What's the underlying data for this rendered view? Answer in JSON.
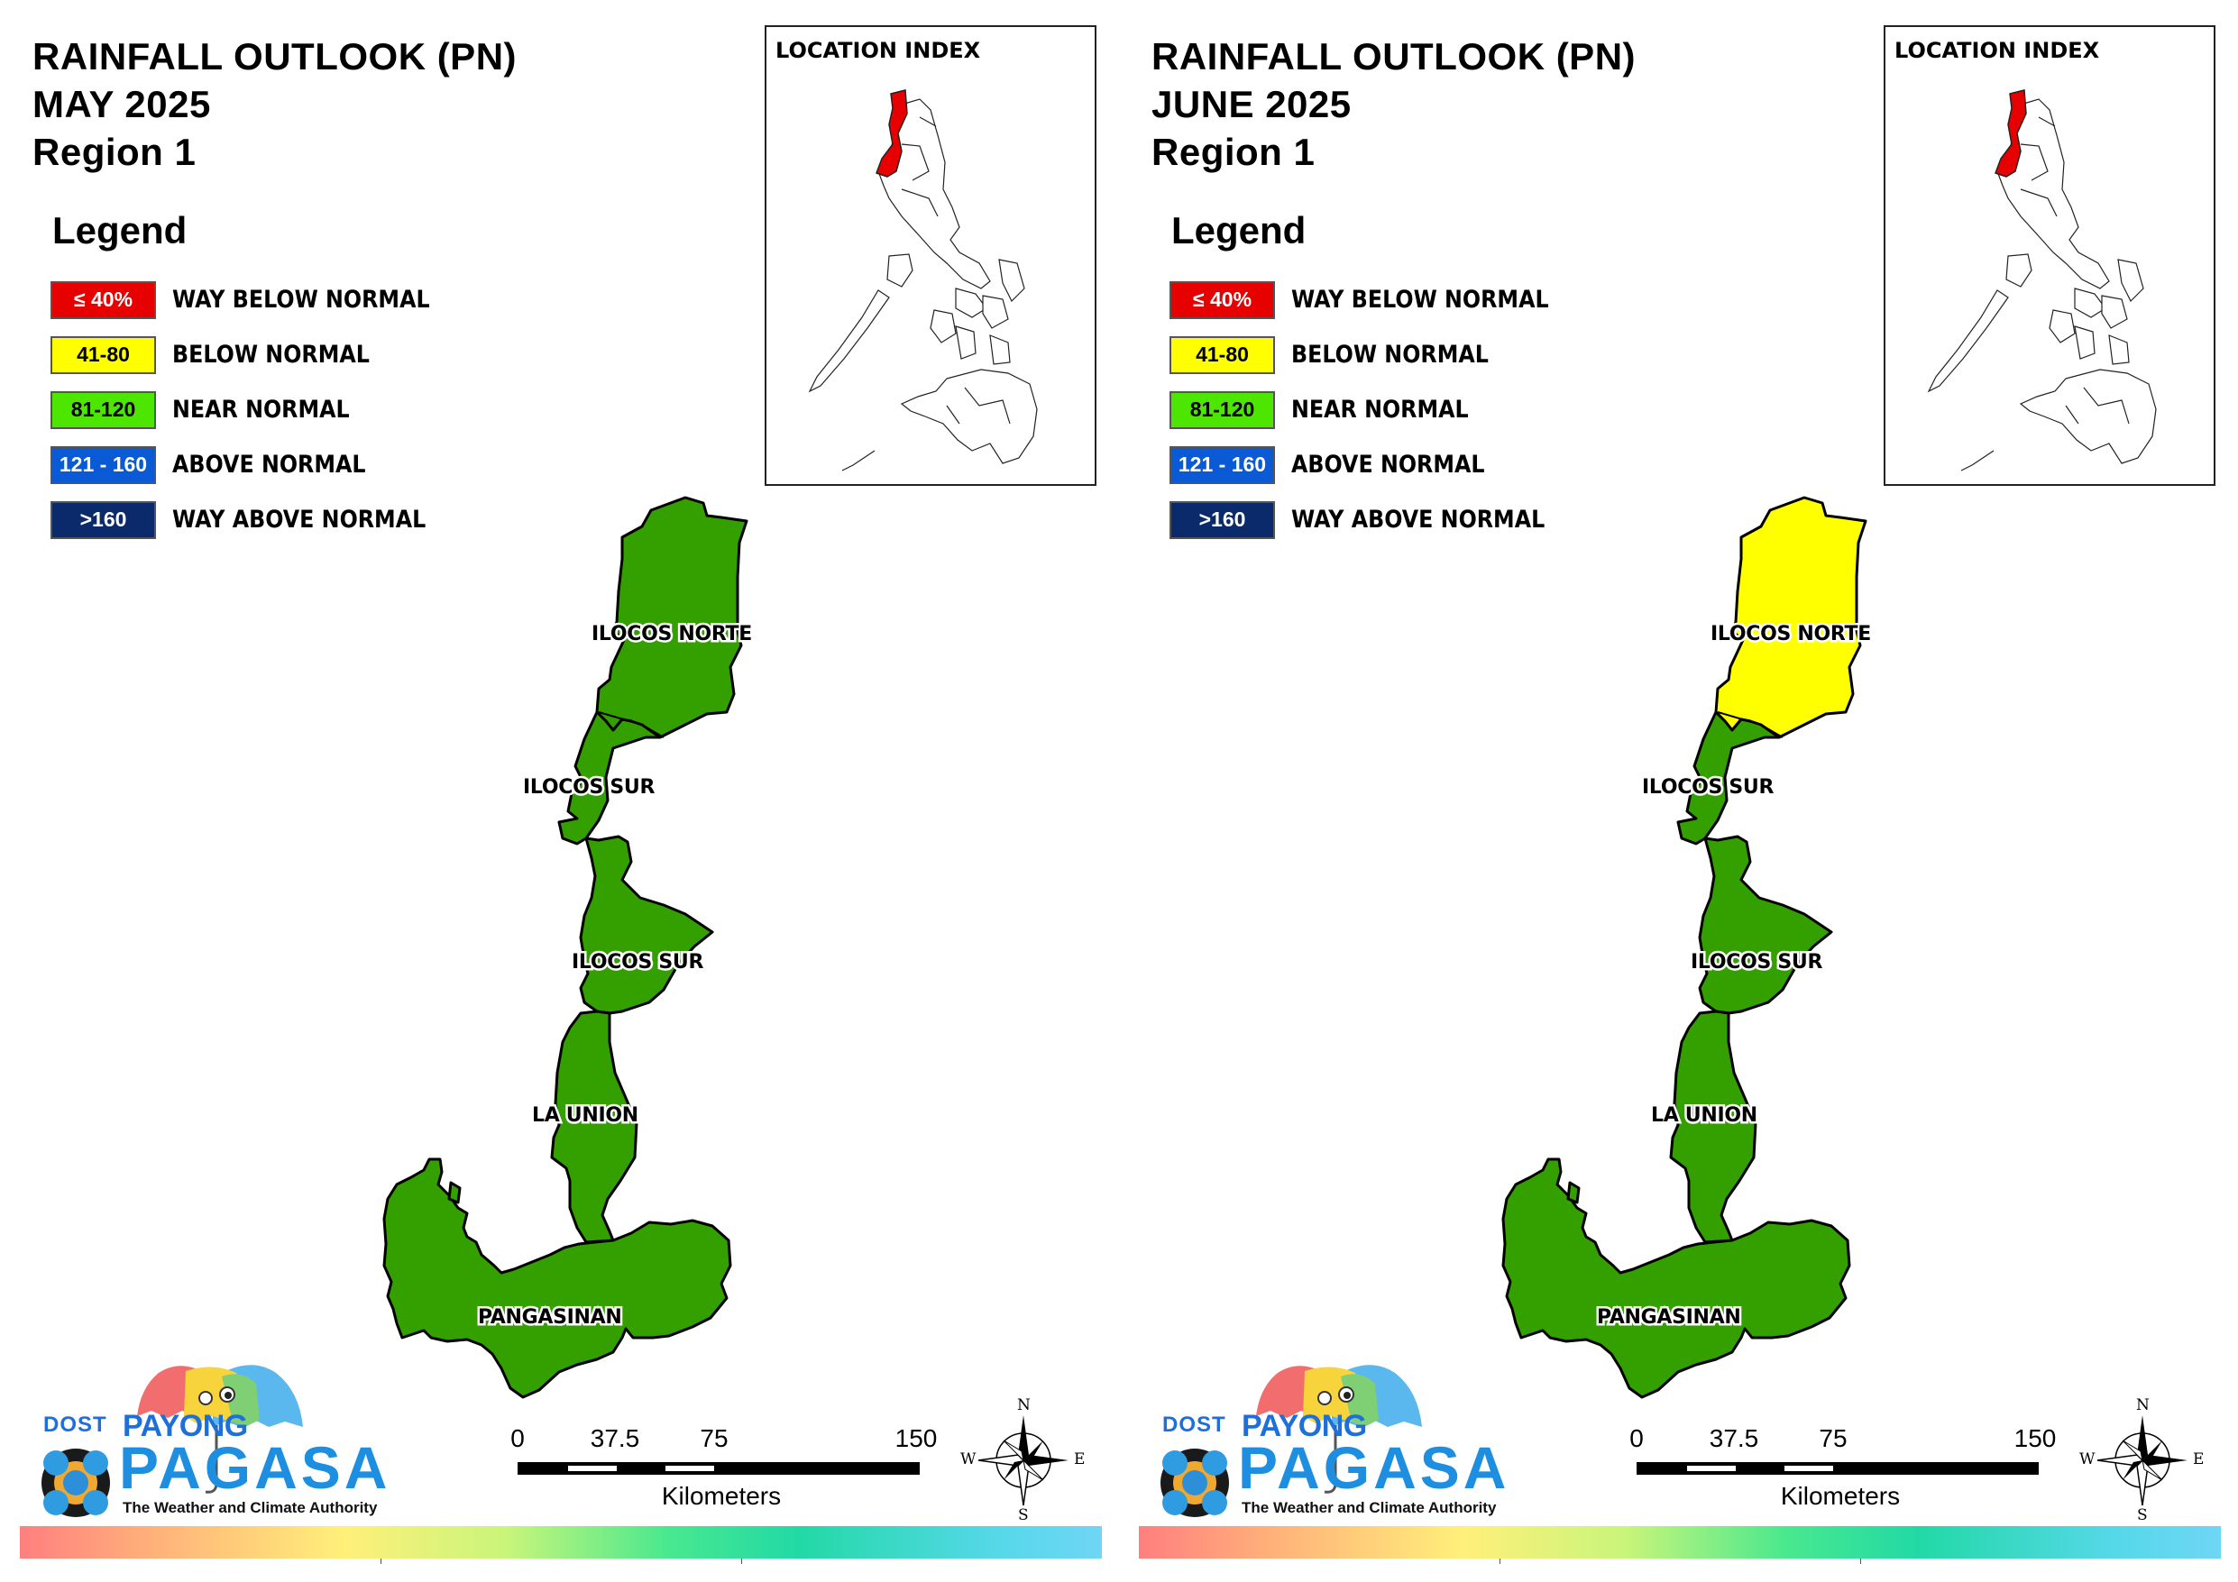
{
  "panels": [
    {
      "title_line1": "RAINFALL OUTLOOK (PN)",
      "title_line2": "MAY 2025",
      "title_line3": "Region 1",
      "provinces": [
        {
          "name": "ILOCOS NORTE",
          "category": "near-normal",
          "color": "#33a000"
        },
        {
          "name": "ILOCOS SUR",
          "category": "near-normal",
          "color": "#33a000"
        },
        {
          "name": "ILOCOS SUR",
          "category": "near-normal",
          "color": "#33a000"
        },
        {
          "name": "LA UNION",
          "category": "near-normal",
          "color": "#33a000"
        },
        {
          "name": "PANGASINAN",
          "category": "near-normal",
          "color": "#33a000"
        }
      ]
    },
    {
      "title_line1": "RAINFALL OUTLOOK (PN)",
      "title_line2": "JUNE 2025",
      "title_line3": "Region 1",
      "provinces": [
        {
          "name": "ILOCOS NORTE",
          "category": "below-normal",
          "color": "#ffff00"
        },
        {
          "name": "ILOCOS SUR",
          "category": "near-normal",
          "color": "#33a000"
        },
        {
          "name": "ILOCOS SUR",
          "category": "near-normal",
          "color": "#33a000"
        },
        {
          "name": "LA UNION",
          "category": "near-normal",
          "color": "#33a000"
        },
        {
          "name": "PANGASINAN",
          "category": "near-normal",
          "color": "#33a000"
        }
      ]
    }
  ],
  "legend": {
    "title": "Legend",
    "items": [
      {
        "range": "≤ 40%",
        "label": "WAY BELOW NORMAL",
        "color": "#e60000",
        "text_color": "#ffffff"
      },
      {
        "range": "41-80",
        "label": "BELOW NORMAL",
        "color": "#ffff00",
        "text_color": "#000000"
      },
      {
        "range": "81-120",
        "label": "NEAR NORMAL",
        "color": "#4ce600",
        "text_color": "#000000"
      },
      {
        "range": "121 - 160",
        "label": "ABOVE NORMAL",
        "color": "#0a5ad6",
        "text_color": "#ffffff"
      },
      {
        "range": ">160",
        "label": "WAY ABOVE NORMAL",
        "color": "#0b2a6b",
        "text_color": "#ffffff"
      }
    ]
  },
  "location_index": {
    "title": "LOCATION INDEX",
    "highlight_color": "#e60000"
  },
  "scale_bar": {
    "ticks": [
      "0",
      "37.5",
      "75",
      "150"
    ],
    "unit": "Kilometers"
  },
  "compass": {
    "n": "N",
    "s": "S",
    "e": "E",
    "w": "W"
  },
  "logo": {
    "dost": "DOST",
    "payong": "PAYONG",
    "pagasa": "PAGASA",
    "tagline": "The Weather and Climate Authority"
  }
}
